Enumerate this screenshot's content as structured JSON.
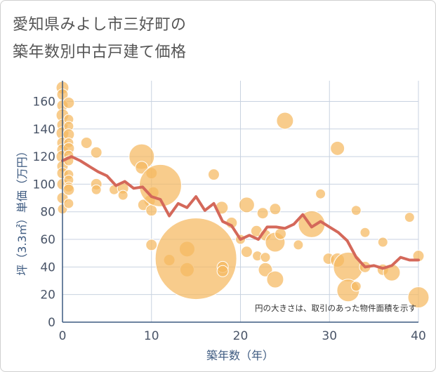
{
  "title_line1": "愛知県みよし市三好町の",
  "title_line2": "築年数別中古戸建て価格",
  "colors": {
    "bubble": "#f5b860",
    "line": "#d4685a",
    "grid": "#c8d2e0",
    "axis": "#3d5a80"
  },
  "chart_data": {
    "type": "scatter",
    "title": "愛知県みよし市三好町の築年数別中古戸建て価格",
    "xlabel": "築年数（年）",
    "ylabel": "坪（3.3㎡）単価（万円）",
    "xlim": [
      0,
      40
    ],
    "ylim": [
      0,
      175
    ],
    "xticks": [
      0,
      10,
      20,
      30,
      40
    ],
    "yticks": [
      0,
      20,
      40,
      60,
      80,
      100,
      120,
      140,
      160
    ],
    "grid": true,
    "note": "円の大きさは、取引のあった物件面積を示す",
    "scatter": [
      {
        "x": 0,
        "y": 170,
        "s": 9
      },
      {
        "x": 0,
        "y": 165,
        "s": 8
      },
      {
        "x": 0,
        "y": 157,
        "s": 8
      },
      {
        "x": 0,
        "y": 150,
        "s": 9
      },
      {
        "x": 0,
        "y": 143,
        "s": 8
      },
      {
        "x": 0,
        "y": 137,
        "s": 9
      },
      {
        "x": 0,
        "y": 130,
        "s": 8
      },
      {
        "x": 0,
        "y": 125,
        "s": 8
      },
      {
        "x": 0,
        "y": 120,
        "s": 9
      },
      {
        "x": 0,
        "y": 113,
        "s": 8
      },
      {
        "x": 0,
        "y": 108,
        "s": 8
      },
      {
        "x": 0,
        "y": 100,
        "s": 8
      },
      {
        "x": 0,
        "y": 90,
        "s": 8
      },
      {
        "x": 0,
        "y": 82,
        "s": 7
      },
      {
        "x": 0.7,
        "y": 159,
        "s": 8
      },
      {
        "x": 0.7,
        "y": 147,
        "s": 7
      },
      {
        "x": 0.7,
        "y": 142,
        "s": 7
      },
      {
        "x": 0.7,
        "y": 136,
        "s": 8
      },
      {
        "x": 0.7,
        "y": 130,
        "s": 7
      },
      {
        "x": 0.7,
        "y": 126,
        "s": 8
      },
      {
        "x": 0.7,
        "y": 121,
        "s": 7
      },
      {
        "x": 0.7,
        "y": 117,
        "s": 7
      },
      {
        "x": 0.7,
        "y": 107,
        "s": 7
      },
      {
        "x": 0.7,
        "y": 103,
        "s": 7
      },
      {
        "x": 0.7,
        "y": 98,
        "s": 7
      },
      {
        "x": 0.7,
        "y": 96,
        "s": 8
      },
      {
        "x": 0.7,
        "y": 86,
        "s": 7
      },
      {
        "x": 2.7,
        "y": 130,
        "s": 8
      },
      {
        "x": 3.8,
        "y": 123,
        "s": 8
      },
      {
        "x": 3.8,
        "y": 100,
        "s": 8
      },
      {
        "x": 3.8,
        "y": 96,
        "s": 7
      },
      {
        "x": 5.8,
        "y": 96,
        "s": 7
      },
      {
        "x": 6.8,
        "y": 97,
        "s": 8
      },
      {
        "x": 6.8,
        "y": 92,
        "s": 7
      },
      {
        "x": 8.9,
        "y": 120,
        "s": 18
      },
      {
        "x": 8.9,
        "y": 112,
        "s": 9
      },
      {
        "x": 10,
        "y": 108,
        "s": 8
      },
      {
        "x": 10.2,
        "y": 94,
        "s": 8
      },
      {
        "x": 9.8,
        "y": 88,
        "s": 8
      },
      {
        "x": 9.1,
        "y": 85,
        "s": 8
      },
      {
        "x": 10,
        "y": 81,
        "s": 8
      },
      {
        "x": 11,
        "y": 99,
        "s": 30
      },
      {
        "x": 10,
        "y": 56,
        "s": 8
      },
      {
        "x": 12,
        "y": 45,
        "s": 8
      },
      {
        "x": 14,
        "y": 53,
        "s": 11
      },
      {
        "x": 14,
        "y": 38,
        "s": 10
      },
      {
        "x": 15,
        "y": 46,
        "s": 58
      },
      {
        "x": 17,
        "y": 107,
        "s": 8
      },
      {
        "x": 17.9,
        "y": 83,
        "s": 9
      },
      {
        "x": 18,
        "y": 40,
        "s": 8
      },
      {
        "x": 18,
        "y": 37,
        "s": 8
      },
      {
        "x": 19,
        "y": 72,
        "s": 8
      },
      {
        "x": 20,
        "y": 60,
        "s": 7
      },
      {
        "x": 20.7,
        "y": 85,
        "s": 11
      },
      {
        "x": 20.7,
        "y": 51,
        "s": 8
      },
      {
        "x": 21.8,
        "y": 66,
        "s": 8
      },
      {
        "x": 21.9,
        "y": 48,
        "s": 7
      },
      {
        "x": 22.5,
        "y": 79,
        "s": 8
      },
      {
        "x": 22.8,
        "y": 63,
        "s": 8
      },
      {
        "x": 22.8,
        "y": 47,
        "s": 7
      },
      {
        "x": 22.8,
        "y": 38,
        "s": 10
      },
      {
        "x": 23.9,
        "y": 82,
        "s": 8
      },
      {
        "x": 23.9,
        "y": 58,
        "s": 14
      },
      {
        "x": 23.9,
        "y": 31,
        "s": 12
      },
      {
        "x": 24.5,
        "y": 64,
        "s": 8
      },
      {
        "x": 25,
        "y": 146,
        "s": 12
      },
      {
        "x": 26.5,
        "y": 56,
        "s": 7
      },
      {
        "x": 28,
        "y": 71,
        "s": 19
      },
      {
        "x": 29,
        "y": 93,
        "s": 7
      },
      {
        "x": 29.9,
        "y": 46,
        "s": 8
      },
      {
        "x": 30.9,
        "y": 126,
        "s": 10
      },
      {
        "x": 30.9,
        "y": 45,
        "s": 10
      },
      {
        "x": 32.1,
        "y": 40,
        "s": 21
      },
      {
        "x": 32.1,
        "y": 23,
        "s": 16
      },
      {
        "x": 33,
        "y": 81,
        "s": 7
      },
      {
        "x": 33,
        "y": 26,
        "s": 7
      },
      {
        "x": 34,
        "y": 65,
        "s": 7
      },
      {
        "x": 34,
        "y": 40,
        "s": 8
      },
      {
        "x": 36,
        "y": 58,
        "s": 7
      },
      {
        "x": 36,
        "y": 38,
        "s": 8
      },
      {
        "x": 37,
        "y": 36,
        "s": 12
      },
      {
        "x": 39,
        "y": 76,
        "s": 7
      },
      {
        "x": 40,
        "y": 48,
        "s": 8
      },
      {
        "x": 40,
        "y": 18,
        "s": 15
      }
    ],
    "line": [
      {
        "x": 0,
        "y": 117
      },
      {
        "x": 1,
        "y": 120
      },
      {
        "x": 2,
        "y": 117
      },
      {
        "x": 3,
        "y": 113
      },
      {
        "x": 4,
        "y": 109
      },
      {
        "x": 5,
        "y": 106
      },
      {
        "x": 6,
        "y": 99
      },
      {
        "x": 7,
        "y": 102
      },
      {
        "x": 8,
        "y": 97
      },
      {
        "x": 9,
        "y": 98
      },
      {
        "x": 10,
        "y": 91
      },
      {
        "x": 11,
        "y": 89
      },
      {
        "x": 12,
        "y": 77
      },
      {
        "x": 13,
        "y": 86
      },
      {
        "x": 14,
        "y": 83
      },
      {
        "x": 15,
        "y": 91
      },
      {
        "x": 16,
        "y": 81
      },
      {
        "x": 17,
        "y": 86
      },
      {
        "x": 18,
        "y": 73
      },
      {
        "x": 19,
        "y": 70
      },
      {
        "x": 20,
        "y": 60
      },
      {
        "x": 21,
        "y": 63
      },
      {
        "x": 22,
        "y": 60
      },
      {
        "x": 23,
        "y": 69
      },
      {
        "x": 24,
        "y": 69
      },
      {
        "x": 25,
        "y": 68
      },
      {
        "x": 26,
        "y": 71
      },
      {
        "x": 27,
        "y": 78
      },
      {
        "x": 28,
        "y": 69
      },
      {
        "x": 29,
        "y": 73
      },
      {
        "x": 30,
        "y": 69
      },
      {
        "x": 31,
        "y": 65
      },
      {
        "x": 32,
        "y": 59
      },
      {
        "x": 33,
        "y": 47
      },
      {
        "x": 34,
        "y": 40
      },
      {
        "x": 35,
        "y": 41
      },
      {
        "x": 36,
        "y": 39
      },
      {
        "x": 37,
        "y": 41
      },
      {
        "x": 38,
        "y": 47
      },
      {
        "x": 39,
        "y": 45
      },
      {
        "x": 40,
        "y": 45
      }
    ]
  }
}
